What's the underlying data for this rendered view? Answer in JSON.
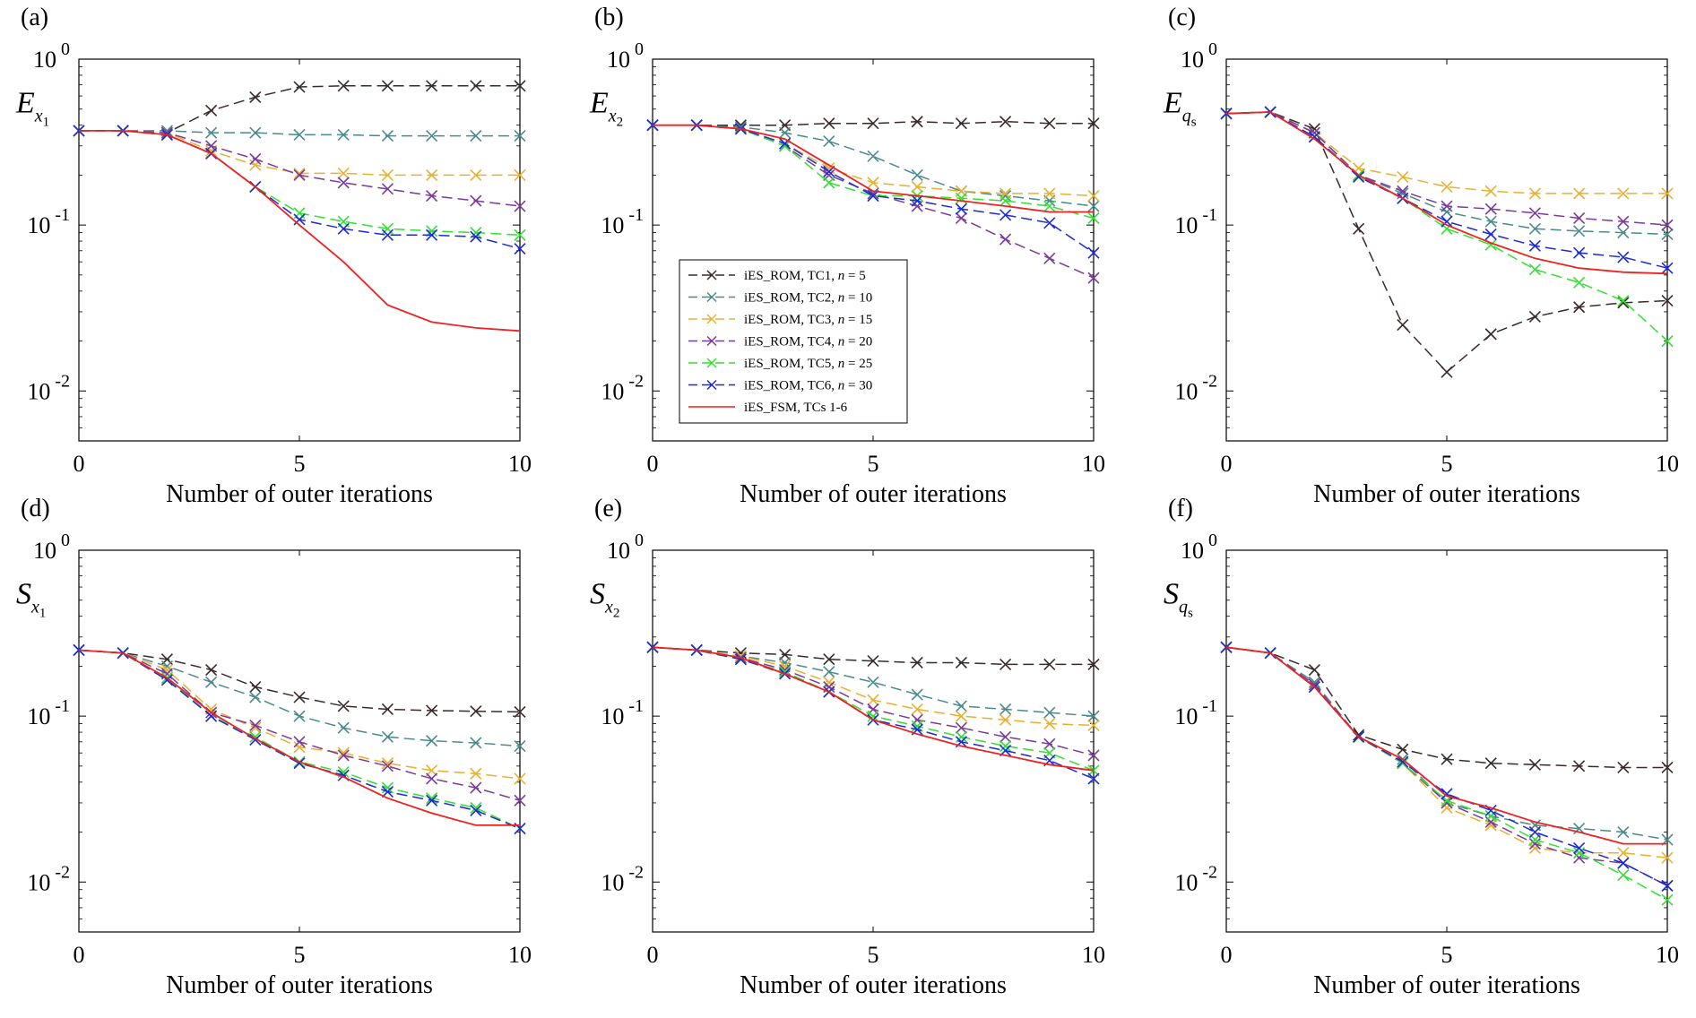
{
  "chart_data": [
    {
      "type": "line",
      "panel": "(a)",
      "ylabel_letter": "E",
      "ylabel_sub": "x",
      "ylabel_subsub": "1",
      "xlabel": "Number of outer iterations",
      "xlim": [
        0,
        10
      ],
      "ylim": [
        0.005,
        1
      ],
      "yscale": "log",
      "xticks": [
        "0",
        "5",
        "10"
      ],
      "yticks": [
        {
          "base": "10",
          "exp": "0"
        },
        {
          "base": "10",
          "exp": "-1"
        },
        {
          "base": "10",
          "exp": "-2"
        }
      ],
      "x": [
        0,
        1,
        2,
        3,
        4,
        5,
        6,
        7,
        8,
        9,
        10
      ],
      "series": [
        {
          "name": "iES_ROM, TC1, n = 5",
          "color": "#3a2a2a",
          "values": [
            0.37,
            0.37,
            0.36,
            0.49,
            0.59,
            0.68,
            0.69,
            0.69,
            0.69,
            0.69,
            0.69
          ]
        },
        {
          "name": "iES_ROM, TC2, n = 10",
          "color": "#4a8a8a",
          "values": [
            0.37,
            0.37,
            0.37,
            0.36,
            0.36,
            0.35,
            0.35,
            0.345,
            0.345,
            0.345,
            0.345
          ]
        },
        {
          "name": "iES_ROM, TC3, n = 15",
          "color": "#e8b030",
          "values": [
            0.37,
            0.37,
            0.36,
            0.28,
            0.23,
            0.205,
            0.205,
            0.2,
            0.2,
            0.2,
            0.2
          ]
        },
        {
          "name": "iES_ROM, TC4, n = 20",
          "color": "#7a3a9a",
          "values": [
            0.37,
            0.37,
            0.36,
            0.3,
            0.25,
            0.2,
            0.18,
            0.165,
            0.15,
            0.14,
            0.13
          ]
        },
        {
          "name": "iES_ROM, TC5, n = 25",
          "color": "#33e033",
          "values": [
            0.37,
            0.37,
            0.35,
            0.27,
            0.17,
            0.118,
            0.105,
            0.095,
            0.092,
            0.09,
            0.087
          ]
        },
        {
          "name": "iES_ROM, TC6, n = 30",
          "color": "#1a2ad8",
          "values": [
            0.37,
            0.37,
            0.35,
            0.27,
            0.17,
            0.108,
            0.095,
            0.087,
            0.087,
            0.085,
            0.072
          ]
        },
        {
          "name": "iES_FSM, TCs 1-6",
          "color": "#ee2222",
          "values": [
            0.37,
            0.37,
            0.35,
            0.27,
            0.17,
            0.1,
            0.06,
            0.033,
            0.026,
            0.024,
            0.023
          ]
        }
      ]
    },
    {
      "type": "line",
      "panel": "(b)",
      "ylabel_letter": "E",
      "ylabel_sub": "x",
      "ylabel_subsub": "2",
      "xlabel": "Number of outer iterations",
      "xlim": [
        0,
        10
      ],
      "ylim": [
        0.005,
        1
      ],
      "yscale": "log",
      "xticks": [
        "0",
        "5",
        "10"
      ],
      "yticks": [
        {
          "base": "10",
          "exp": "0"
        },
        {
          "base": "10",
          "exp": "-1"
        },
        {
          "base": "10",
          "exp": "-2"
        }
      ],
      "x": [
        0,
        1,
        2,
        3,
        4,
        5,
        6,
        7,
        8,
        9,
        10
      ],
      "series": [
        {
          "name": "iES_ROM, TC1, n = 5",
          "color": "#3a2a2a",
          "values": [
            0.4,
            0.4,
            0.4,
            0.4,
            0.41,
            0.41,
            0.42,
            0.41,
            0.42,
            0.41,
            0.41
          ]
        },
        {
          "name": "iES_ROM, TC2, n = 10",
          "color": "#4a8a8a",
          "values": [
            0.4,
            0.4,
            0.39,
            0.36,
            0.32,
            0.26,
            0.2,
            0.16,
            0.15,
            0.14,
            0.13
          ]
        },
        {
          "name": "iES_ROM, TC3, n = 15",
          "color": "#e8b030",
          "values": [
            0.4,
            0.4,
            0.38,
            0.31,
            0.22,
            0.18,
            0.17,
            0.16,
            0.155,
            0.155,
            0.15
          ]
        },
        {
          "name": "iES_ROM, TC4, n = 20",
          "color": "#7a3a9a",
          "values": [
            0.4,
            0.4,
            0.38,
            0.3,
            0.2,
            0.155,
            0.13,
            0.11,
            0.082,
            0.063,
            0.048
          ]
        },
        {
          "name": "iES_ROM, TC5, n = 25",
          "color": "#33e033",
          "values": [
            0.4,
            0.4,
            0.38,
            0.3,
            0.18,
            0.15,
            0.15,
            0.145,
            0.14,
            0.13,
            0.11
          ]
        },
        {
          "name": "iES_ROM, TC6, n = 30",
          "color": "#1a2ad8",
          "values": [
            0.4,
            0.4,
            0.38,
            0.31,
            0.21,
            0.15,
            0.14,
            0.125,
            0.115,
            0.103,
            0.068
          ]
        },
        {
          "name": "iES_FSM, TCs 1-6",
          "color": "#ee2222",
          "values": [
            0.4,
            0.4,
            0.38,
            0.33,
            0.23,
            0.16,
            0.15,
            0.14,
            0.13,
            0.12,
            0.12
          ]
        }
      ]
    },
    {
      "type": "line",
      "panel": "(c)",
      "ylabel_letter": "E",
      "ylabel_sub": "q",
      "ylabel_subsub": "s",
      "xlabel": "Number of outer iterations",
      "xlim": [
        0,
        10
      ],
      "ylim": [
        0.005,
        1
      ],
      "yscale": "log",
      "xticks": [
        "0",
        "5",
        "10"
      ],
      "yticks": [
        {
          "base": "10",
          "exp": "0"
        },
        {
          "base": "10",
          "exp": "-1"
        },
        {
          "base": "10",
          "exp": "-2"
        }
      ],
      "x": [
        0,
        1,
        2,
        3,
        4,
        5,
        6,
        7,
        8,
        9,
        10
      ],
      "series": [
        {
          "name": "iES_ROM, TC1, n = 5",
          "color": "#3a2a2a",
          "values": [
            0.47,
            0.48,
            0.38,
            0.095,
            0.025,
            0.013,
            0.022,
            0.028,
            0.032,
            0.034,
            0.035
          ]
        },
        {
          "name": "iES_ROM, TC2, n = 10",
          "color": "#4a8a8a",
          "values": [
            0.47,
            0.48,
            0.36,
            0.2,
            0.155,
            0.12,
            0.105,
            0.095,
            0.092,
            0.09,
            0.088
          ]
        },
        {
          "name": "iES_ROM, TC3, n = 15",
          "color": "#e8b030",
          "values": [
            0.47,
            0.48,
            0.36,
            0.22,
            0.195,
            0.17,
            0.16,
            0.155,
            0.155,
            0.155,
            0.155
          ]
        },
        {
          "name": "iES_ROM, TC4, n = 20",
          "color": "#7a3a9a",
          "values": [
            0.47,
            0.48,
            0.36,
            0.2,
            0.16,
            0.13,
            0.125,
            0.118,
            0.11,
            0.105,
            0.1
          ]
        },
        {
          "name": "iES_ROM, TC5, n = 25",
          "color": "#33e033",
          "values": [
            0.47,
            0.48,
            0.34,
            0.2,
            0.145,
            0.095,
            0.076,
            0.054,
            0.045,
            0.035,
            0.02
          ]
        },
        {
          "name": "iES_ROM, TC6, n = 30",
          "color": "#1a2ad8",
          "values": [
            0.47,
            0.48,
            0.34,
            0.195,
            0.145,
            0.105,
            0.088,
            0.075,
            0.068,
            0.064,
            0.055
          ]
        },
        {
          "name": "iES_FSM, TCs 1-6",
          "color": "#ee2222",
          "values": [
            0.47,
            0.48,
            0.33,
            0.2,
            0.145,
            0.1,
            0.078,
            0.063,
            0.055,
            0.052,
            0.051
          ]
        }
      ]
    },
    {
      "type": "line",
      "panel": "(d)",
      "ylabel_letter": "S",
      "ylabel_sub": "x",
      "ylabel_subsub": "1",
      "xlabel": "Number of outer iterations",
      "xlim": [
        0,
        10
      ],
      "ylim": [
        0.005,
        1
      ],
      "yscale": "log",
      "xticks": [
        "0",
        "5",
        "10"
      ],
      "yticks": [
        {
          "base": "10",
          "exp": "0"
        },
        {
          "base": "10",
          "exp": "-1"
        },
        {
          "base": "10",
          "exp": "-2"
        }
      ],
      "x": [
        0,
        1,
        2,
        3,
        4,
        5,
        6,
        7,
        8,
        9,
        10
      ],
      "series": [
        {
          "name": "iES_ROM, TC1, n = 5",
          "color": "#3a2a2a",
          "values": [
            0.25,
            0.24,
            0.22,
            0.19,
            0.15,
            0.13,
            0.115,
            0.11,
            0.108,
            0.107,
            0.106
          ]
        },
        {
          "name": "iES_ROM, TC2, n = 10",
          "color": "#4a8a8a",
          "values": [
            0.25,
            0.24,
            0.2,
            0.16,
            0.13,
            0.1,
            0.085,
            0.075,
            0.071,
            0.069,
            0.066
          ]
        },
        {
          "name": "iES_ROM, TC3, n = 15",
          "color": "#e8b030",
          "values": [
            0.25,
            0.24,
            0.19,
            0.11,
            0.085,
            0.065,
            0.06,
            0.052,
            0.047,
            0.045,
            0.042
          ]
        },
        {
          "name": "iES_ROM, TC4, n = 20",
          "color": "#7a3a9a",
          "values": [
            0.25,
            0.24,
            0.18,
            0.105,
            0.088,
            0.07,
            0.058,
            0.05,
            0.042,
            0.037,
            0.031
          ]
        },
        {
          "name": "iES_ROM, TC5, n = 25",
          "color": "#33e033",
          "values": [
            0.25,
            0.24,
            0.17,
            0.1,
            0.075,
            0.053,
            0.046,
            0.037,
            0.032,
            0.028,
            0.021
          ]
        },
        {
          "name": "iES_ROM, TC6, n = 30",
          "color": "#1a2ad8",
          "values": [
            0.25,
            0.24,
            0.165,
            0.1,
            0.072,
            0.052,
            0.044,
            0.035,
            0.031,
            0.027,
            0.021
          ]
        },
        {
          "name": "iES_FSM, TCs 1-6",
          "color": "#ee2222",
          "values": [
            0.25,
            0.24,
            0.17,
            0.105,
            0.073,
            0.053,
            0.043,
            0.032,
            0.026,
            0.022,
            0.022
          ]
        }
      ]
    },
    {
      "type": "line",
      "panel": "(e)",
      "ylabel_letter": "S",
      "ylabel_sub": "x",
      "ylabel_subsub": "2",
      "xlabel": "Number of outer iterations",
      "xlim": [
        0,
        10
      ],
      "ylim": [
        0.005,
        1
      ],
      "yscale": "log",
      "xticks": [
        "0",
        "5",
        "10"
      ],
      "yticks": [
        {
          "base": "10",
          "exp": "0"
        },
        {
          "base": "10",
          "exp": "-1"
        },
        {
          "base": "10",
          "exp": "-2"
        }
      ],
      "x": [
        0,
        1,
        2,
        3,
        4,
        5,
        6,
        7,
        8,
        9,
        10
      ],
      "series": [
        {
          "name": "iES_ROM, TC1, n = 5",
          "color": "#3a2a2a",
          "values": [
            0.26,
            0.25,
            0.24,
            0.235,
            0.22,
            0.215,
            0.21,
            0.21,
            0.205,
            0.205,
            0.205
          ]
        },
        {
          "name": "iES_ROM, TC2, n = 10",
          "color": "#4a8a8a",
          "values": [
            0.26,
            0.25,
            0.23,
            0.21,
            0.185,
            0.16,
            0.135,
            0.115,
            0.11,
            0.105,
            0.1
          ]
        },
        {
          "name": "iES_ROM, TC3, n = 15",
          "color": "#e8b030",
          "values": [
            0.26,
            0.25,
            0.23,
            0.2,
            0.16,
            0.125,
            0.11,
            0.1,
            0.095,
            0.09,
            0.088
          ]
        },
        {
          "name": "iES_ROM, TC4, n = 20",
          "color": "#7a3a9a",
          "values": [
            0.26,
            0.25,
            0.225,
            0.19,
            0.15,
            0.11,
            0.095,
            0.085,
            0.075,
            0.068,
            0.058
          ]
        },
        {
          "name": "iES_ROM, TC5, n = 25",
          "color": "#33e033",
          "values": [
            0.26,
            0.25,
            0.22,
            0.185,
            0.14,
            0.1,
            0.087,
            0.075,
            0.066,
            0.06,
            0.047
          ]
        },
        {
          "name": "iES_ROM, TC6, n = 30",
          "color": "#1a2ad8",
          "values": [
            0.26,
            0.25,
            0.22,
            0.18,
            0.14,
            0.095,
            0.083,
            0.07,
            0.062,
            0.054,
            0.042
          ]
        },
        {
          "name": "iES_FSM, TCs 1-6",
          "color": "#ee2222",
          "values": [
            0.26,
            0.25,
            0.225,
            0.18,
            0.14,
            0.095,
            0.078,
            0.066,
            0.058,
            0.051,
            0.047
          ]
        }
      ]
    },
    {
      "type": "line",
      "panel": "(f)",
      "ylabel_letter": "S",
      "ylabel_sub": "q",
      "ylabel_subsub": "s",
      "xlabel": "Number of outer iterations",
      "xlim": [
        0,
        10
      ],
      "ylim": [
        0.005,
        1
      ],
      "yscale": "log",
      "xticks": [
        "0",
        "5",
        "10"
      ],
      "yticks": [
        {
          "base": "10",
          "exp": "0"
        },
        {
          "base": "10",
          "exp": "-1"
        },
        {
          "base": "10",
          "exp": "-2"
        }
      ],
      "x": [
        0,
        1,
        2,
        3,
        4,
        5,
        6,
        7,
        8,
        9,
        10
      ],
      "series": [
        {
          "name": "iES_ROM, TC1, n = 5",
          "color": "#3a2a2a",
          "values": [
            0.26,
            0.24,
            0.19,
            0.077,
            0.063,
            0.055,
            0.052,
            0.051,
            0.05,
            0.049,
            0.049
          ]
        },
        {
          "name": "iES_ROM, TC2, n = 10",
          "color": "#4a8a8a",
          "values": [
            0.26,
            0.24,
            0.16,
            0.075,
            0.055,
            0.03,
            0.025,
            0.022,
            0.021,
            0.02,
            0.018
          ]
        },
        {
          "name": "iES_ROM, TC3, n = 15",
          "color": "#e8b030",
          "values": [
            0.26,
            0.24,
            0.155,
            0.075,
            0.052,
            0.028,
            0.022,
            0.016,
            0.015,
            0.015,
            0.014
          ]
        },
        {
          "name": "iES_ROM, TC4, n = 20",
          "color": "#7a3a9a",
          "values": [
            0.26,
            0.24,
            0.155,
            0.075,
            0.052,
            0.03,
            0.023,
            0.017,
            0.014,
            0.013,
            0.0095
          ]
        },
        {
          "name": "iES_ROM, TC5, n = 25",
          "color": "#33e033",
          "values": [
            0.26,
            0.24,
            0.15,
            0.075,
            0.052,
            0.031,
            0.025,
            0.018,
            0.015,
            0.011,
            0.0078
          ]
        },
        {
          "name": "iES_ROM, TC6, n = 30",
          "color": "#1a2ad8",
          "values": [
            0.26,
            0.24,
            0.15,
            0.075,
            0.053,
            0.034,
            0.027,
            0.02,
            0.016,
            0.013,
            0.0095
          ]
        },
        {
          "name": "iES_FSM, TCs 1-6",
          "color": "#ee2222",
          "values": [
            0.26,
            0.24,
            0.15,
            0.075,
            0.055,
            0.033,
            0.028,
            0.023,
            0.02,
            0.017,
            0.017
          ]
        }
      ]
    }
  ],
  "legend": {
    "entries": [
      {
        "prefix": "iES_ROM, TC1, ",
        "n": "n",
        "suffix": " = 5",
        "color": "#3a2a2a",
        "marker": "x",
        "dash": true
      },
      {
        "prefix": "iES_ROM, TC2, ",
        "n": "n",
        "suffix": " = 10",
        "color": "#4a8a8a",
        "marker": "x",
        "dash": true
      },
      {
        "prefix": "iES_ROM, TC3, ",
        "n": "n",
        "suffix": " = 15",
        "color": "#e8b030",
        "marker": "x",
        "dash": true
      },
      {
        "prefix": "iES_ROM, TC4, ",
        "n": "n",
        "suffix": " = 20",
        "color": "#7a3a9a",
        "marker": "x",
        "dash": true
      },
      {
        "prefix": "iES_ROM, TC5, ",
        "n": "n",
        "suffix": " = 25",
        "color": "#33e033",
        "marker": "x",
        "dash": true
      },
      {
        "prefix": "iES_ROM, TC6, ",
        "n": "n",
        "suffix": " = 30",
        "color": "#1a2ad8",
        "marker": "x",
        "dash": true
      },
      {
        "prefix": "iES_FSM, TCs 1-6",
        "n": "",
        "suffix": "",
        "color": "#ee2222",
        "marker": "none",
        "dash": false
      }
    ]
  }
}
